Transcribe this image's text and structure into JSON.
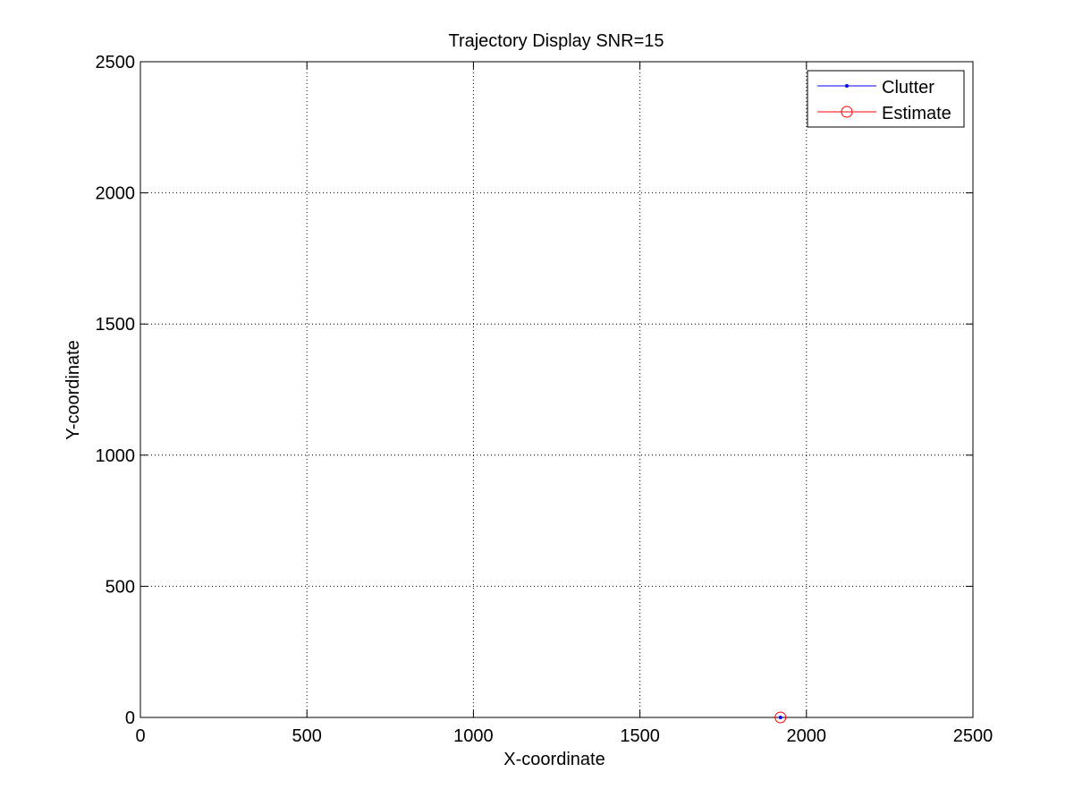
{
  "chart_data": {
    "type": "scatter",
    "title": "Trajectory Display  SNR=15",
    "xlabel": "X-coordinate",
    "ylabel": "Y-coordinate",
    "xlim": [
      0,
      2500
    ],
    "ylim": [
      0,
      2500
    ],
    "xticks": [
      0,
      500,
      1000,
      1500,
      2000,
      2500
    ],
    "yticks": [
      0,
      500,
      1000,
      1500,
      2000,
      2500
    ],
    "grid": true,
    "legend_position": "top-right",
    "series": [
      {
        "name": "Clutter",
        "color": "#0000ff",
        "marker": "point",
        "points": [
          [
            1922,
            0
          ]
        ]
      },
      {
        "name": "Estimate",
        "color": "#ff0000",
        "marker": "circle",
        "points": [
          [
            1922,
            0
          ]
        ]
      }
    ]
  }
}
